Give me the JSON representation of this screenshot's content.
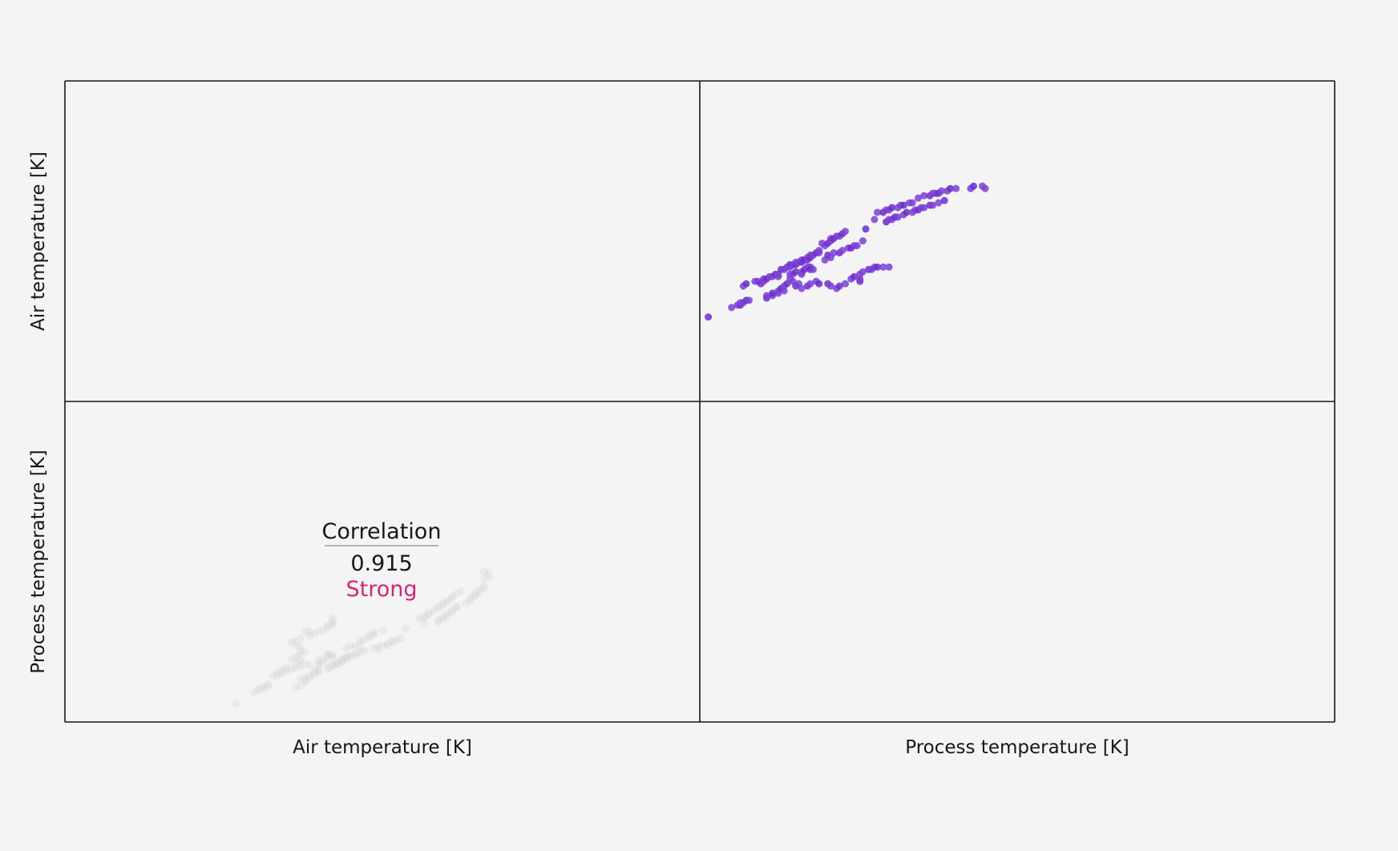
{
  "chart_data": {
    "type": "scatter",
    "layout": "correlation-matrix-2x2",
    "variables": [
      "Air temperature [K]",
      "Process temperature [K]"
    ],
    "x_labels": [
      "Air temperature [K]",
      "Process temperature [K]"
    ],
    "y_labels": [
      "Air temperature [K]",
      "Process temperature [K]"
    ],
    "xlim": [
      295.2,
      313.9
    ],
    "ylim": [
      295.2,
      304.8
    ],
    "grid": false,
    "legend": "none",
    "correlation": {
      "title": "Correlation",
      "value": "0.915",
      "strength": "Strong"
    },
    "colors": {
      "background": "#f4f4f4",
      "point": "#7b3fd4",
      "point_dark": "#6a2ec9",
      "faint_point": "#d8d8d8",
      "strength": "#d12771",
      "frame": "#161616",
      "text": "#161616"
    },
    "points": [
      [
        295.3,
        297.2
      ],
      [
        296.1,
        297.6
      ],
      [
        296.3,
        297.7
      ],
      [
        296.4,
        297.7
      ],
      [
        296.4,
        297.8
      ],
      [
        296.5,
        297.8
      ],
      [
        296.6,
        297.9
      ],
      [
        296.7,
        297.9
      ],
      [
        296.5,
        298.5
      ],
      [
        296.6,
        298.6
      ],
      [
        296.9,
        298.7
      ],
      [
        297.0,
        298.7
      ],
      [
        297.1,
        298.6
      ],
      [
        297.2,
        298.7
      ],
      [
        297.2,
        298.8
      ],
      [
        297.3,
        298.8
      ],
      [
        297.4,
        298.9
      ],
      [
        297.5,
        298.9
      ],
      [
        297.6,
        299.0
      ],
      [
        297.7,
        299.0
      ],
      [
        297.7,
        298.9
      ],
      [
        297.3,
        298.0
      ],
      [
        297.3,
        298.1
      ],
      [
        297.5,
        298.1
      ],
      [
        297.5,
        298.2
      ],
      [
        297.7,
        298.2
      ],
      [
        297.7,
        298.3
      ],
      [
        297.8,
        298.4
      ],
      [
        297.9,
        298.3
      ],
      [
        297.9,
        298.5
      ],
      [
        297.8,
        299.2
      ],
      [
        297.9,
        299.2
      ],
      [
        298.0,
        299.3
      ],
      [
        298.1,
        299.4
      ],
      [
        298.1,
        299.3
      ],
      [
        298.2,
        299.4
      ],
      [
        298.3,
        299.4
      ],
      [
        298.3,
        299.5
      ],
      [
        298.4,
        299.5
      ],
      [
        298.5,
        299.5
      ],
      [
        298.1,
        299.0
      ],
      [
        298.2,
        299.0
      ],
      [
        298.3,
        299.1
      ],
      [
        298.5,
        299.0
      ],
      [
        298.5,
        299.1
      ],
      [
        298.6,
        299.2
      ],
      [
        298.7,
        299.3
      ],
      [
        298.8,
        299.3
      ],
      [
        298.8,
        299.2
      ],
      [
        298.9,
        299.2
      ],
      [
        298.5,
        299.6
      ],
      [
        298.6,
        299.6
      ],
      [
        298.7,
        299.6
      ],
      [
        298.7,
        299.7
      ],
      [
        298.8,
        299.7
      ],
      [
        298.8,
        299.8
      ],
      [
        298.9,
        299.8
      ],
      [
        299.0,
        299.9
      ],
      [
        299.1,
        300.0
      ],
      [
        299.1,
        299.9
      ],
      [
        298.0,
        298.6
      ],
      [
        298.1,
        298.8
      ],
      [
        298.2,
        298.7
      ],
      [
        298.3,
        298.5
      ],
      [
        298.4,
        298.6
      ],
      [
        298.5,
        298.4
      ],
      [
        298.7,
        298.5
      ],
      [
        298.8,
        298.6
      ],
      [
        299.0,
        298.7
      ],
      [
        299.1,
        298.6
      ],
      [
        299.2,
        300.3
      ],
      [
        299.3,
        300.2
      ],
      [
        299.4,
        300.3
      ],
      [
        299.5,
        300.4
      ],
      [
        299.5,
        300.5
      ],
      [
        299.6,
        300.5
      ],
      [
        299.7,
        300.6
      ],
      [
        299.8,
        300.6
      ],
      [
        299.9,
        300.7
      ],
      [
        300.0,
        300.8
      ],
      [
        299.3,
        299.6
      ],
      [
        299.4,
        299.8
      ],
      [
        299.5,
        299.7
      ],
      [
        299.6,
        299.9
      ],
      [
        299.8,
        299.9
      ],
      [
        299.9,
        300.0
      ],
      [
        300.1,
        300.1
      ],
      [
        300.2,
        300.1
      ],
      [
        300.3,
        300.2
      ],
      [
        300.4,
        300.2
      ],
      [
        299.4,
        298.6
      ],
      [
        299.5,
        298.5
      ],
      [
        299.7,
        298.4
      ],
      [
        299.8,
        298.5
      ],
      [
        300.0,
        298.6
      ],
      [
        300.2,
        298.8
      ],
      [
        300.3,
        298.9
      ],
      [
        300.5,
        299.0
      ],
      [
        300.6,
        299.1
      ],
      [
        300.8,
        299.2
      ],
      [
        300.9,
        299.2
      ],
      [
        301.0,
        299.3
      ],
      [
        301.1,
        299.3
      ],
      [
        301.3,
        299.3
      ],
      [
        301.5,
        299.3
      ],
      [
        300.5,
        298.7
      ],
      [
        300.5,
        298.8
      ],
      [
        300.6,
        300.4
      ],
      [
        300.7,
        300.9
      ],
      [
        301.0,
        301.3
      ],
      [
        301.1,
        301.6
      ],
      [
        301.3,
        301.6
      ],
      [
        301.4,
        301.7
      ],
      [
        301.5,
        301.7
      ],
      [
        301.6,
        301.8
      ],
      [
        301.8,
        301.8
      ],
      [
        301.9,
        301.9
      ],
      [
        302.0,
        301.9
      ],
      [
        302.2,
        302.0
      ],
      [
        302.3,
        302.0
      ],
      [
        301.4,
        301.2
      ],
      [
        301.5,
        301.3
      ],
      [
        301.6,
        301.3
      ],
      [
        301.7,
        301.4
      ],
      [
        301.8,
        301.4
      ],
      [
        302.0,
        301.5
      ],
      [
        302.1,
        301.6
      ],
      [
        302.3,
        301.6
      ],
      [
        302.4,
        301.7
      ],
      [
        302.5,
        301.7
      ],
      [
        302.6,
        301.8
      ],
      [
        302.7,
        301.8
      ],
      [
        302.9,
        301.9
      ],
      [
        303.0,
        301.9
      ],
      [
        303.2,
        302.0
      ],
      [
        303.4,
        302.1
      ],
      [
        302.5,
        302.2
      ],
      [
        302.7,
        302.3
      ],
      [
        302.9,
        302.3
      ],
      [
        303.0,
        302.4
      ],
      [
        303.1,
        302.4
      ],
      [
        303.2,
        302.4
      ],
      [
        303.3,
        302.5
      ],
      [
        303.5,
        302.5
      ],
      [
        303.6,
        302.6
      ],
      [
        303.8,
        302.6
      ],
      [
        304.3,
        302.6
      ],
      [
        304.4,
        302.7
      ],
      [
        304.7,
        302.7
      ],
      [
        304.8,
        302.6
      ]
    ]
  }
}
